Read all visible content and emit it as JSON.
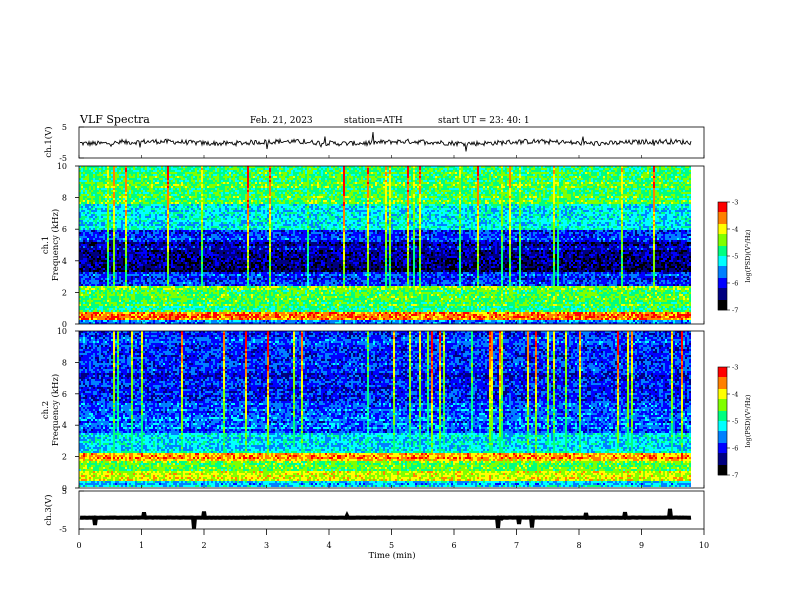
{
  "header": {
    "title": "VLF  Spectra",
    "date": "Feb. 21, 2023",
    "station": "station=ATH",
    "start_ut": "start  UT  =    23: 40: 1"
  },
  "chart_data": [
    {
      "type": "line",
      "panel": "ch1-waveform",
      "ylabel": "ch.1(V)",
      "ylim": [
        -5,
        5
      ],
      "yticks": [
        5,
        -5
      ],
      "xlim": [
        0,
        10
      ],
      "x_end": 9.8,
      "baseline": 0
    },
    {
      "type": "heatmap",
      "panel": "ch1-spectrogram",
      "ylabel_line1": "ch.1",
      "ylabel_line2": "Frequency (kHz)",
      "ylim": [
        0,
        10
      ],
      "yticks": [
        0,
        2,
        4,
        6,
        8,
        10
      ],
      "xlim": [
        0,
        10
      ],
      "x_end": 9.8,
      "bands": [
        {
          "from": 0.0,
          "to": 0.3,
          "level": 0.35
        },
        {
          "from": 0.3,
          "to": 0.8,
          "level": 0.88
        },
        {
          "from": 0.8,
          "to": 1.2,
          "level": 0.55
        },
        {
          "from": 1.2,
          "to": 1.9,
          "level": 0.6
        },
        {
          "from": 1.9,
          "to": 2.4,
          "level": 0.62
        },
        {
          "from": 2.4,
          "to": 3.3,
          "level": 0.28
        },
        {
          "from": 3.3,
          "to": 4.2,
          "level": 0.12
        },
        {
          "from": 4.2,
          "to": 5.2,
          "level": 0.18
        },
        {
          "from": 5.2,
          "to": 6.0,
          "level": 0.28
        },
        {
          "from": 6.0,
          "to": 7.6,
          "level": 0.45
        },
        {
          "from": 7.6,
          "to": 10.0,
          "level": 0.58
        }
      ],
      "colorbar": {
        "label": "log(PSD)(V²/Hz)",
        "range": [
          -7,
          -3
        ],
        "ticks": [
          -3,
          -4,
          -5,
          -6,
          -7
        ]
      }
    },
    {
      "type": "heatmap",
      "panel": "ch2-spectrogram",
      "ylabel_line1": "ch.2",
      "ylabel_line2": "Frequency (kHz)",
      "ylim": [
        0,
        10
      ],
      "yticks": [
        0,
        2,
        4,
        6,
        8,
        10
      ],
      "xlim": [
        0,
        10
      ],
      "x_end": 9.8,
      "bands": [
        {
          "from": 0.0,
          "to": 0.5,
          "level": 0.4
        },
        {
          "from": 0.5,
          "to": 1.1,
          "level": 0.72
        },
        {
          "from": 1.1,
          "to": 1.7,
          "level": 0.6
        },
        {
          "from": 1.7,
          "to": 2.2,
          "level": 0.82
        },
        {
          "from": 2.2,
          "to": 3.5,
          "level": 0.45
        },
        {
          "from": 3.5,
          "to": 5.5,
          "level": 0.32
        },
        {
          "from": 5.5,
          "to": 7.5,
          "level": 0.25
        },
        {
          "from": 7.5,
          "to": 10.0,
          "level": 0.3
        }
      ],
      "colorbar": {
        "label": "log(PSD)(V²/Hz)",
        "range": [
          -7,
          -3
        ],
        "ticks": [
          -3,
          -4,
          -5,
          -6,
          -7
        ]
      }
    },
    {
      "type": "line",
      "panel": "ch3-waveform",
      "ylabel": "ch.3(V)",
      "ylim": [
        -5,
        5
      ],
      "yticks": [
        5,
        -5
      ],
      "xlim": [
        0,
        10
      ],
      "x_end": 9.8,
      "baseline": -2,
      "xlabel": "Time  (min)",
      "xticks": [
        0,
        1,
        2,
        3,
        4,
        5,
        6,
        7,
        8,
        9,
        10
      ]
    }
  ],
  "colors": {
    "colormap": [
      "#000000",
      "#00007f",
      "#0000ff",
      "#0080ff",
      "#00ffff",
      "#00ff80",
      "#80ff00",
      "#ffff00",
      "#ff8000",
      "#ff0000",
      "#ffffff"
    ]
  }
}
